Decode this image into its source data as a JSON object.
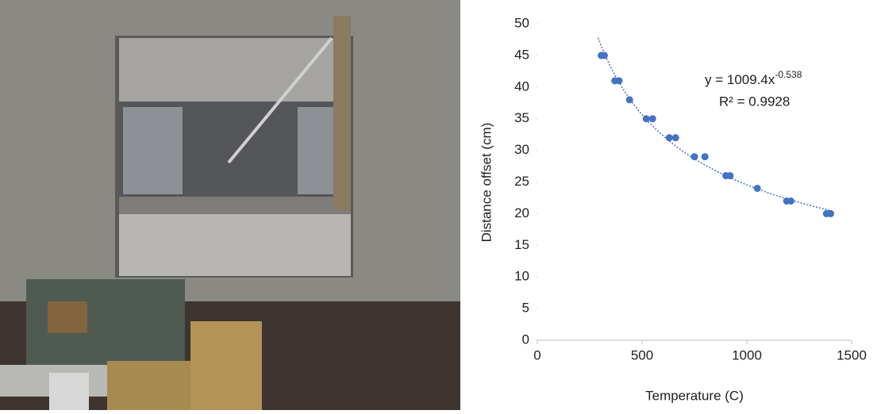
{
  "chart_data": {
    "type": "scatter",
    "xlabel": "Temperature (C)",
    "ylabel": "Distance offset (cm)",
    "x": [
      305,
      320,
      370,
      390,
      440,
      520,
      550,
      630,
      660,
      750,
      800,
      900,
      920,
      1050,
      1190,
      1210,
      1380,
      1400
    ],
    "series": [
      {
        "color": "#4472c4",
        "values": [
          45,
          45,
          41,
          41,
          38,
          35,
          35,
          32,
          32,
          29,
          29,
          26,
          26,
          24,
          22,
          22,
          20,
          20
        ]
      }
    ],
    "trendline": {
      "coefficient": 1009.4,
      "exponent": -0.538,
      "equation": "y = 1009.4x",
      "equation_exponent": "-0.538",
      "r_squared": "R² = 0.9928"
    },
    "xlim": [
      0,
      1500
    ],
    "xticks": [
      0,
      500,
      1000,
      1500
    ],
    "ylim": [
      0,
      50
    ],
    "yticks": [
      0,
      5,
      10,
      15,
      20,
      25,
      30,
      35,
      40,
      45,
      50
    ]
  }
}
